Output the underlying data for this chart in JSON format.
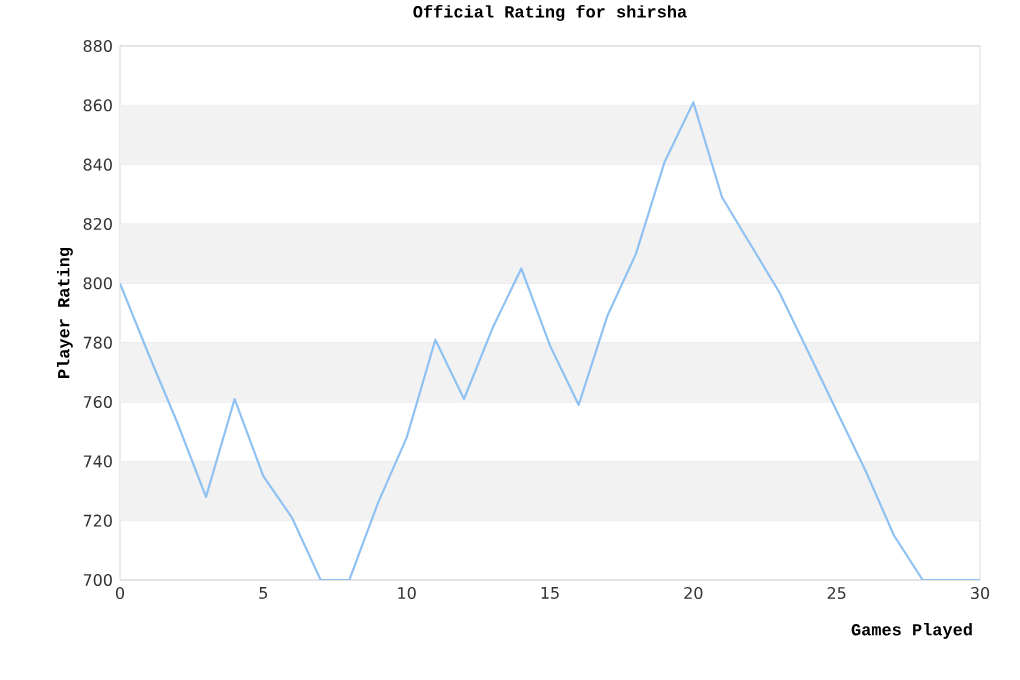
{
  "chart_data": {
    "type": "line",
    "title": "Official Rating for shirsha",
    "xlabel": "Games Played",
    "ylabel": "Player Rating",
    "x": [
      0,
      1,
      2,
      3,
      4,
      5,
      6,
      7,
      8,
      9,
      10,
      11,
      12,
      13,
      14,
      15,
      16,
      17,
      18,
      19,
      20,
      21,
      22,
      23,
      24,
      25,
      26,
      27,
      28,
      29,
      30
    ],
    "series": [
      {
        "color": "#8fc1f2",
        "values": [
          800,
          776,
          753,
          728,
          761,
          735,
          721,
          700,
          700,
          726,
          748,
          781,
          761,
          785,
          805,
          779,
          759,
          789,
          810,
          841,
          861,
          829,
          813,
          797,
          777,
          757,
          737,
          715,
          700,
          700,
          700
        ]
      }
    ],
    "xlim": [
      0,
      30
    ],
    "xticks": [
      0,
      5,
      10,
      15,
      20,
      25,
      30
    ],
    "ylim": [
      700,
      880
    ],
    "yticks": [
      700,
      720,
      740,
      760,
      780,
      800,
      820,
      840,
      860,
      880
    ],
    "grid": "y",
    "marker": "none",
    "line_style": "solid"
  }
}
